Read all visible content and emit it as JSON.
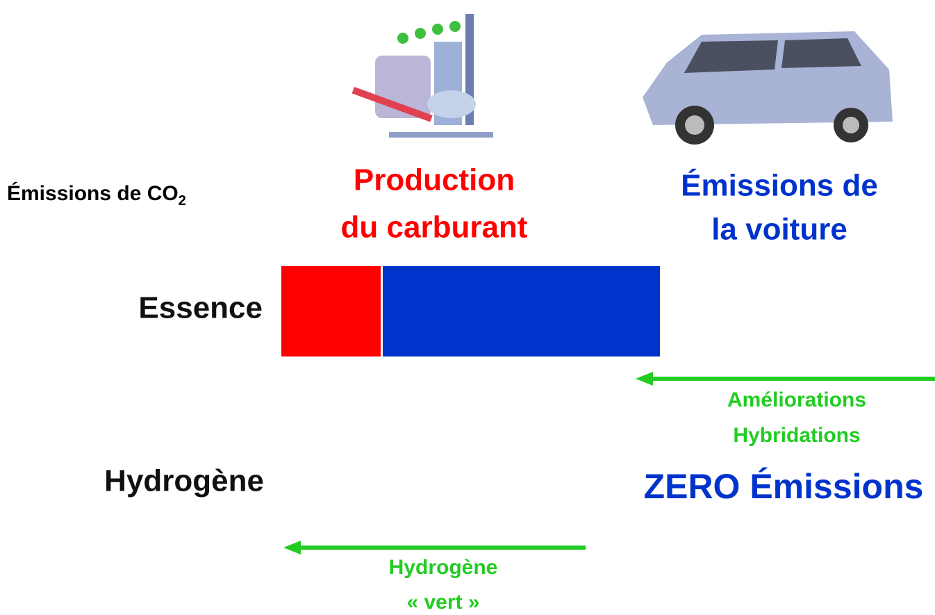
{
  "axis_label": {
    "text": "Émissions de CO",
    "subscript": "2"
  },
  "columns": [
    {
      "lines": [
        "Production",
        "du carburant"
      ]
    },
    {
      "lines": [
        "Émissions de",
        "la voiture"
      ]
    }
  ],
  "rows": [
    {
      "label": "Essence"
    },
    {
      "label": "Hydrogène",
      "result": "ZERO Émissions"
    }
  ],
  "annotations": [
    {
      "lines": [
        "Améliorations",
        "Hybridations"
      ]
    },
    {
      "lines": [
        "Hydrogène",
        "« vert »"
      ]
    }
  ]
}
